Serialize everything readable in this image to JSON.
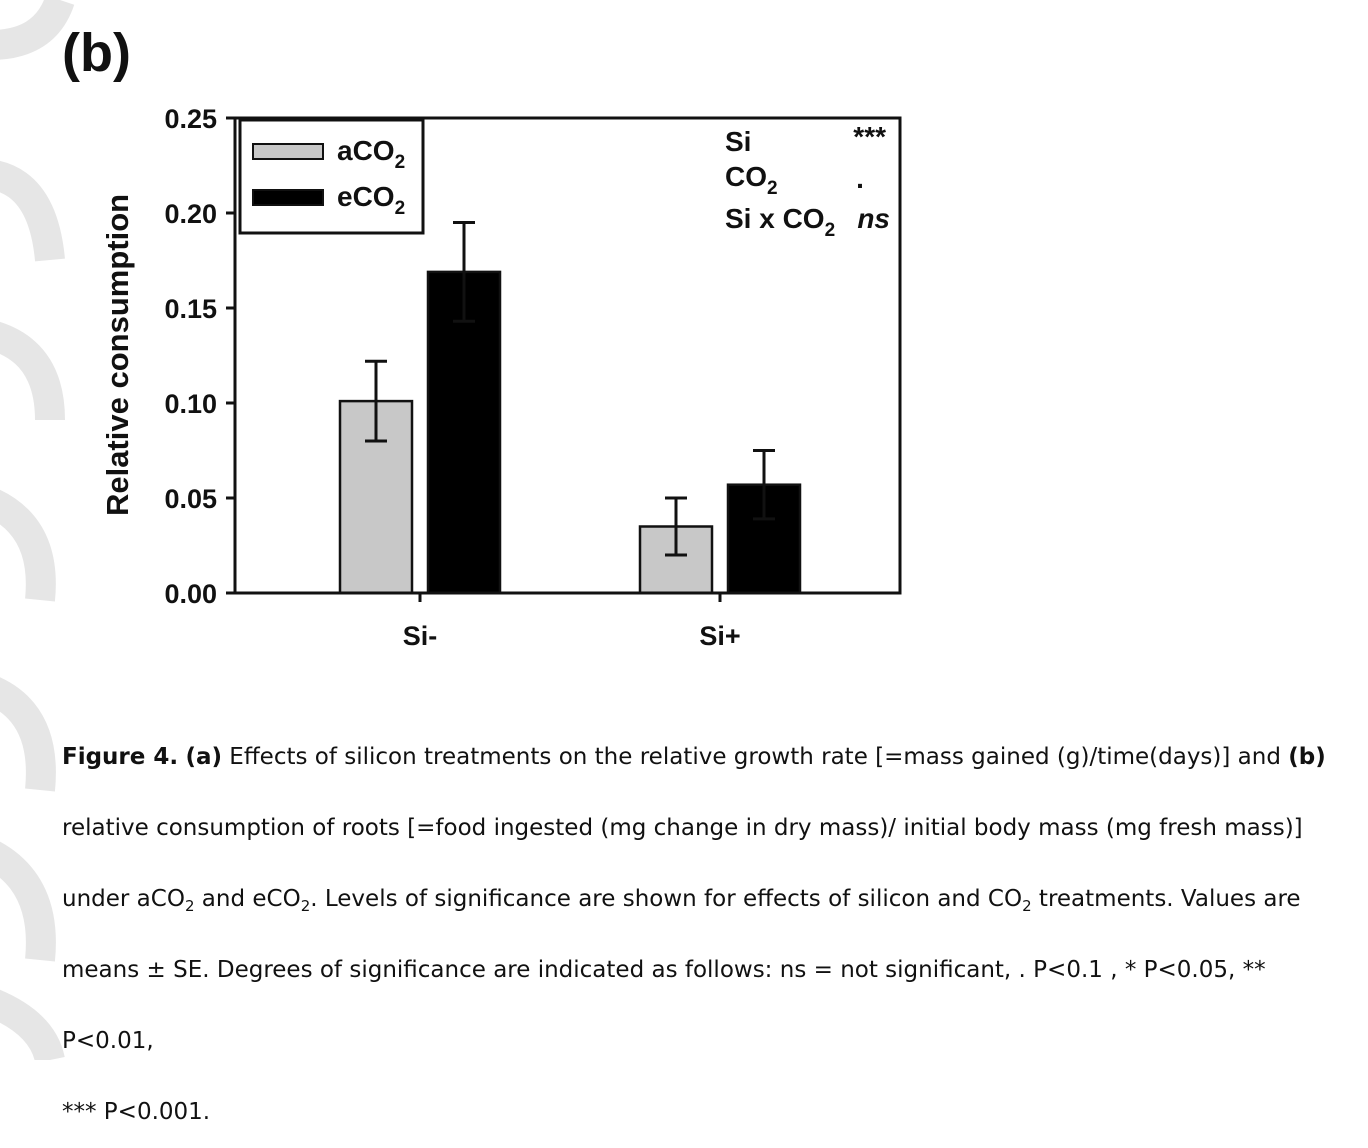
{
  "panel_label": "(b)",
  "chart_data": {
    "type": "bar",
    "categories": [
      "Si-",
      "Si+"
    ],
    "series": [
      {
        "name": "aCO2",
        "color": "#c8c8c8",
        "values": [
          0.101,
          0.035
        ],
        "errors": [
          0.021,
          0.015
        ]
      },
      {
        "name": "eCO2",
        "color": "#000000",
        "values": [
          0.169,
          0.057
        ],
        "errors": [
          0.026,
          0.018
        ]
      }
    ],
    "ylabel": "Relative consumption",
    "xlabel": "",
    "ylim": [
      0,
      0.25
    ],
    "yticks": [
      "0.00",
      "0.05",
      "0.10",
      "0.15",
      "0.20",
      "0.25"
    ],
    "legend_placement": "top-left",
    "legend": [
      {
        "base": "aCO",
        "sub": "2"
      },
      {
        "base": "eCO",
        "sub": "2"
      }
    ],
    "significance": [
      {
        "term": "Si",
        "term_sub": "",
        "term_tail": "",
        "value": "***"
      },
      {
        "term": "CO",
        "term_sub": "2",
        "term_tail": "",
        "value": "."
      },
      {
        "term": "Si x CO",
        "term_sub": "2",
        "term_tail": "",
        "value": "ns"
      }
    ],
    "grid": false
  },
  "caption": {
    "fig_label": "Figure 4.",
    "a_label": "(a)",
    "a_text": "Effects of silicon treatments on the relative growth rate [=mass gained (g)/time(days)] and",
    "b_label": "(b)",
    "line2": "relative consumption of roots [=food ingested (mg change in dry mass)/ initial body mass (mg fresh mass)]",
    "l3_p1": "under aCO",
    "l3_sub1": "2",
    "l3_p2": " and eCO",
    "l3_sub2": "2",
    "l3_p3": ". Levels of significance are shown for effects of silicon and CO",
    "l3_sub3": "2",
    "l3_p4": " treatments. Values are",
    "line4": "means ± SE. Degrees of significance are indicated as follows: ns = not significant, . P<0.1 , * P<0.05, ** P<0.01,",
    "line5": "*** P<0.001."
  }
}
